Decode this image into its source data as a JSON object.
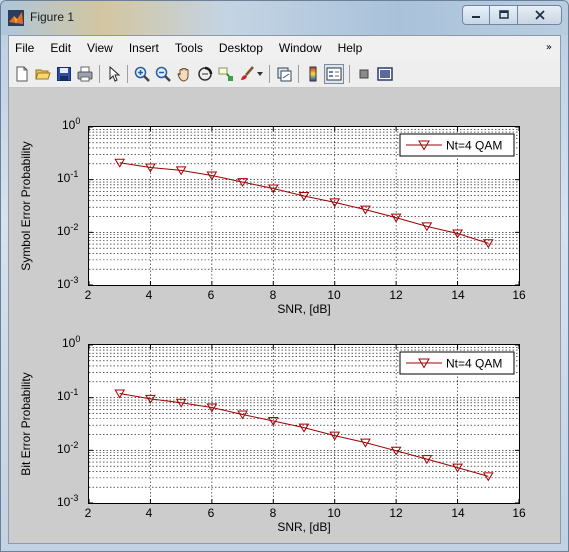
{
  "window": {
    "title": "Figure 1",
    "controls": {
      "minimize_icon": "minimize-icon",
      "maximize_icon": "maximize-icon",
      "close_icon": "close-icon"
    }
  },
  "menubar": {
    "items": [
      "File",
      "Edit",
      "View",
      "Insert",
      "Tools",
      "Desktop",
      "Window",
      "Help"
    ],
    "overflow_arrow": "»"
  },
  "toolbar": {
    "icons": [
      "new-figure-icon",
      "open-file-icon",
      "save-icon",
      "print-icon",
      "pointer-icon",
      "zoom-in-icon",
      "zoom-out-icon",
      "pan-hand-icon",
      "rotate-3d-icon",
      "data-cursor-icon",
      "brush-icon",
      "brush-dropdown-icon",
      "link-plot-icon",
      "colorbar-icon",
      "legend-icon",
      "hide-plot-tools-icon",
      "show-plot-tools-icon"
    ]
  },
  "chart_data": [
    {
      "type": "line",
      "ylabel": "Symbol Error Probability",
      "xlabel": "SNR, [dB]",
      "xlim": [
        2,
        16
      ],
      "ylim": [
        0.001,
        1
      ],
      "yscale": "log",
      "grid": true,
      "legend_position": "top-right",
      "xticks": [
        "2",
        "4",
        "6",
        "8",
        "10",
        "12",
        "14",
        "16"
      ],
      "yticks": [
        {
          "base": "10",
          "exp": "0"
        },
        {
          "base": "10",
          "exp": "-1"
        },
        {
          "base": "10",
          "exp": "-2"
        },
        {
          "base": "10",
          "exp": "-3"
        }
      ],
      "series": [
        {
          "name": "Nt=4 QAM",
          "color": "#a00000",
          "marker": "triangle-down",
          "x": [
            3,
            4,
            5,
            6,
            7,
            8,
            9,
            10,
            11,
            12,
            13,
            14,
            15
          ],
          "y": [
            0.21,
            0.17,
            0.15,
            0.12,
            0.09,
            0.068,
            0.049,
            0.037,
            0.027,
            0.019,
            0.013,
            0.0095,
            0.0062
          ]
        }
      ]
    },
    {
      "type": "line",
      "ylabel": "Bit Error Probability",
      "xlabel": "SNR, [dB]",
      "xlim": [
        2,
        16
      ],
      "ylim": [
        0.001,
        1
      ],
      "yscale": "log",
      "grid": true,
      "legend_position": "top-right",
      "xticks": [
        "2",
        "4",
        "6",
        "8",
        "10",
        "12",
        "14",
        "16"
      ],
      "yticks": [
        {
          "base": "10",
          "exp": "0"
        },
        {
          "base": "10",
          "exp": "-1"
        },
        {
          "base": "10",
          "exp": "-2"
        },
        {
          "base": "10",
          "exp": "-3"
        }
      ],
      "series": [
        {
          "name": "Nt=4 QAM",
          "color": "#a00000",
          "marker": "triangle-down",
          "x": [
            3,
            4,
            5,
            6,
            7,
            8,
            9,
            10,
            11,
            12,
            13,
            14,
            15
          ],
          "y": [
            0.12,
            0.095,
            0.08,
            0.065,
            0.048,
            0.036,
            0.027,
            0.019,
            0.014,
            0.0098,
            0.0068,
            0.0047,
            0.0032
          ]
        }
      ]
    }
  ]
}
